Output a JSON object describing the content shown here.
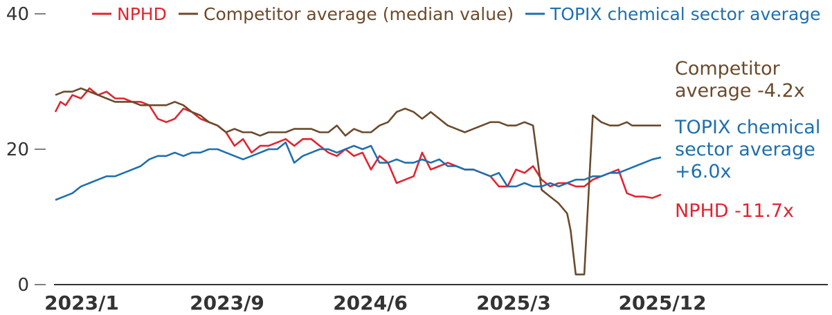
{
  "chart_data": {
    "type": "line",
    "title": "",
    "xlabel": "",
    "ylabel": "",
    "ylim": [
      0,
      40
    ],
    "y_ticks": [
      "0",
      "20",
      "40"
    ],
    "x_ticks": [
      "2023/1",
      "2023/9",
      "2024/6",
      "2025/3",
      "2025/12"
    ],
    "grid": false,
    "legend_position": "top",
    "colors": {
      "nphd": "#e0242f",
      "competitor": "#6b4a2b",
      "topix": "#1f6fae",
      "axis": "#333333"
    },
    "series": [
      {
        "key": "nphd",
        "name": "NPHD",
        "end_label": [
          "NPHD -11.7x"
        ],
        "x": [
          0,
          0.3,
          0.6,
          1,
          1.5,
          2,
          2.5,
          3,
          3.5,
          4,
          4.5,
          5,
          5.5,
          6,
          6.5,
          7,
          7.5,
          8,
          8.5,
          9,
          9.5,
          10,
          10.5,
          11,
          11.5,
          12,
          12.5,
          13,
          13.5,
          14,
          14.5,
          15,
          15.5,
          16,
          16.5,
          17,
          17.5,
          18,
          18.5,
          19,
          19.5,
          20,
          20.5,
          21,
          21.5,
          22,
          22.5,
          23,
          23.5,
          24,
          24.5,
          25,
          25.5,
          26,
          26.5,
          27,
          27.5,
          28,
          28.5,
          29,
          29.5,
          30,
          30.5,
          31,
          31.5,
          32,
          32.5,
          33,
          33.5,
          34,
          34.5,
          35,
          35.5
        ],
        "values": [
          25.5,
          27,
          26.5,
          28,
          27.5,
          29,
          28,
          28.5,
          27.5,
          27.5,
          27,
          27,
          26.5,
          24.5,
          24,
          24.5,
          26,
          25.5,
          24.5,
          24,
          23.5,
          22.5,
          20.5,
          21.5,
          19.5,
          20.5,
          20.5,
          21,
          21.5,
          20.5,
          21.5,
          21.5,
          20.5,
          19.5,
          19,
          20,
          19,
          19.5,
          17,
          19,
          18,
          15,
          15.5,
          16,
          19.5,
          17,
          17.5,
          18,
          17.5,
          17,
          17,
          16.5,
          16,
          14.5,
          14.5,
          17,
          16.5,
          17.5,
          15.5,
          14.5,
          15,
          15,
          14.5,
          14.5,
          15.5,
          16,
          16.5,
          17,
          13.5,
          13,
          13,
          12.8,
          13.3
        ]
      },
      {
        "key": "competitor",
        "name": "Competitor average (median value)",
        "end_label": [
          "Competitor",
          "average -4.2x"
        ],
        "x": [
          0,
          0.5,
          1,
          1.5,
          2,
          2.5,
          3,
          3.5,
          4,
          4.5,
          5,
          5.5,
          6,
          6.5,
          7,
          7.5,
          8,
          8.5,
          9,
          9.5,
          10,
          10.5,
          11,
          11.5,
          12,
          12.5,
          13,
          13.5,
          14,
          14.5,
          15,
          15.5,
          16,
          16.5,
          17,
          17.5,
          18,
          18.5,
          19,
          19.5,
          20,
          20.5,
          21,
          21.5,
          22,
          22.5,
          23,
          23.5,
          24,
          24.5,
          25,
          25.5,
          26,
          26.5,
          27,
          27.5,
          28,
          28.5,
          29,
          29.5,
          30,
          30.2,
          30.5,
          31,
          31.5,
          32,
          32.5,
          33,
          33.5,
          33.8,
          34,
          34.5,
          35,
          35.5
        ],
        "values": [
          28,
          28.5,
          28.5,
          29,
          28.5,
          28,
          27.5,
          27,
          27,
          27,
          26.5,
          26.5,
          26.5,
          26.5,
          27,
          26.5,
          25.5,
          25,
          24,
          23.5,
          22.5,
          23,
          22.5,
          22.5,
          22,
          22.5,
          22.5,
          22.5,
          23,
          23,
          23,
          22.5,
          22.5,
          23.5,
          22,
          23,
          22.5,
          22.5,
          23.5,
          24,
          25.5,
          26,
          25.5,
          24.5,
          25.5,
          24.5,
          23.5,
          23,
          22.5,
          23,
          23.5,
          24,
          24,
          23.5,
          23.5,
          24,
          23.5,
          14,
          13,
          12,
          10.5,
          8,
          1.5,
          1.5,
          25,
          24,
          23.5,
          23.5,
          24,
          23.5,
          23.5,
          23.5,
          23.5,
          23.5
        ]
      },
      {
        "key": "topix",
        "name": "TOPIX chemical sector average",
        "end_label": [
          "TOPIX chemical",
          "sector average",
          "+6.0x"
        ],
        "x": [
          0,
          0.5,
          1,
          1.5,
          2,
          2.5,
          3,
          3.5,
          4,
          4.5,
          5,
          5.5,
          6,
          6.5,
          7,
          7.5,
          8,
          8.5,
          9,
          9.5,
          10,
          10.5,
          11,
          11.5,
          12,
          12.5,
          13,
          13.5,
          14,
          14.5,
          15,
          15.5,
          16,
          16.5,
          17,
          17.5,
          18,
          18.5,
          19,
          19.5,
          20,
          20.5,
          21,
          21.5,
          22,
          22.5,
          23,
          23.5,
          24,
          24.5,
          25,
          25.5,
          26,
          26.5,
          27,
          27.5,
          28,
          28.5,
          29,
          29.5,
          30,
          30.5,
          31,
          31.5,
          32,
          32.5,
          33,
          33.5,
          34,
          34.5,
          35,
          35.5
        ],
        "values": [
          12.5,
          13,
          13.5,
          14.5,
          15,
          15.5,
          16,
          16,
          16.5,
          17,
          17.5,
          18.5,
          19,
          19,
          19.5,
          19,
          19.5,
          19.5,
          20,
          20,
          19.5,
          19,
          18.5,
          19,
          19.5,
          20,
          20,
          21,
          18,
          19,
          19.5,
          20,
          20,
          19.5,
          20,
          20.5,
          20,
          20.5,
          18,
          18,
          18.5,
          18,
          18,
          18.5,
          18,
          18.5,
          17.5,
          17.5,
          17,
          17,
          16.5,
          16,
          16.5,
          14.5,
          14.5,
          15,
          14.5,
          14.5,
          15,
          14.5,
          15,
          15.5,
          15.5,
          16,
          16,
          16.5,
          16.5,
          17,
          17.5,
          18,
          18.5,
          18.8
        ]
      }
    ]
  }
}
